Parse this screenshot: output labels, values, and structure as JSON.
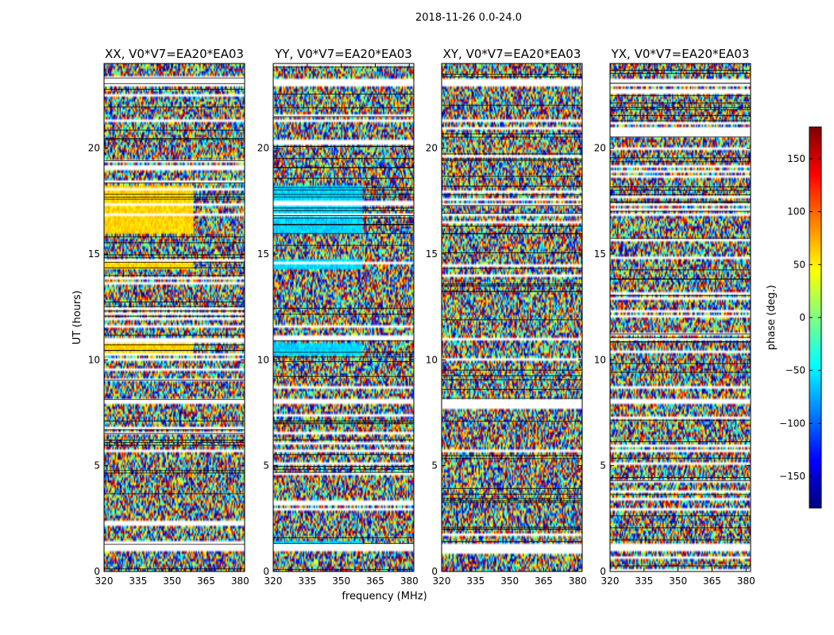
{
  "figure": {
    "suptitle": "2018-11-26 0.0-24.0"
  },
  "chart_data": {
    "type": "heatmap",
    "title": "2018-11-26 0.0-24.0",
    "xlabel": "frequency (MHz)",
    "ylabel": "UT (hours)",
    "xlim": [
      320,
      382
    ],
    "ylim": [
      0,
      24
    ],
    "xticks": [
      "320",
      "335",
      "350",
      "365",
      "380"
    ],
    "xtick_values": [
      320,
      335,
      350,
      365,
      380
    ],
    "yticks": [
      "0",
      "5",
      "10",
      "15",
      "20"
    ],
    "ytick_values": [
      0,
      5,
      10,
      15,
      20
    ],
    "colormap": "jet",
    "panels": [
      {
        "title": "XX, V0*V7=EA20*EA03",
        "baseline_phase": 60
      },
      {
        "title": "YY, V0*V7=EA20*EA03",
        "baseline_phase": -60
      },
      {
        "title": "XY, V0*V7=EA20*EA03",
        "baseline_phase": null
      },
      {
        "title": "YX, V0*V7=EA20*EA03",
        "baseline_phase": null
      }
    ],
    "gap_hours": [
      1.0,
      1.3,
      5.6,
      5.8,
      7.9,
      8.2,
      10.9,
      11.0,
      15.9,
      16.0,
      16.8,
      16.9,
      17.3,
      17.4,
      22.9,
      23.3
    ],
    "colorbar": {
      "label": "phase (deg.)",
      "range": [
        -180,
        180
      ],
      "ticks": [
        "150",
        "100",
        "50",
        "0",
        "−50",
        "−100",
        "−150"
      ],
      "tick_values": [
        150,
        100,
        50,
        0,
        -50,
        -100,
        -150
      ]
    }
  }
}
